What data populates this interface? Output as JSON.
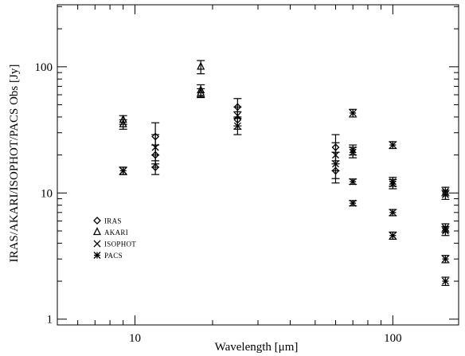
{
  "chart_data": {
    "type": "scatter",
    "title": "",
    "xlabel": "Wavelength [μm]",
    "ylabel": "IRAS/AKARI/ISOPHOT/PACS Obs [Jy]",
    "xscale": "log",
    "yscale": "log",
    "xlim": [
      5,
      180
    ],
    "ylim": [
      0.9,
      310
    ],
    "x_ticklabels": [
      "10",
      "100"
    ],
    "y_ticklabels": [
      "1",
      "10",
      "100"
    ],
    "grid": false,
    "legend_position": "lower-left",
    "series": [
      {
        "name": "IRAS",
        "marker": "diamond",
        "points": [
          {
            "x": 12,
            "y": 28,
            "err": 8
          },
          {
            "x": 12,
            "y": 20,
            "err": 4
          },
          {
            "x": 12,
            "y": 16,
            "err": 2
          },
          {
            "x": 25,
            "y": 48,
            "err": 8
          },
          {
            "x": 25,
            "y": 38,
            "err": 6
          },
          {
            "x": 60,
            "y": 23,
            "err": 6
          },
          {
            "x": 60,
            "y": 15,
            "err": 3
          }
        ]
      },
      {
        "name": "AKARI",
        "marker": "triangle",
        "points": [
          {
            "x": 9,
            "y": 38,
            "err": 3
          },
          {
            "x": 9,
            "y": 35,
            "err": 3
          },
          {
            "x": 18,
            "y": 100,
            "err": 12
          },
          {
            "x": 18,
            "y": 65,
            "err": 7
          },
          {
            "x": 18,
            "y": 62,
            "err": 5
          }
        ]
      },
      {
        "name": "ISOPHOT",
        "marker": "x",
        "points": [
          {
            "x": 9,
            "y": 15,
            "err": 1
          },
          {
            "x": 12,
            "y": 23,
            "err": 6
          },
          {
            "x": 25,
            "y": 41,
            "err": 7
          },
          {
            "x": 25,
            "y": 34,
            "err": 5
          },
          {
            "x": 60,
            "y": 20,
            "err": 5
          },
          {
            "x": 60,
            "y": 17,
            "err": 4
          }
        ]
      },
      {
        "name": "PACS",
        "marker": "asterisk",
        "points": [
          {
            "x": 9,
            "y": 15,
            "err": 1
          },
          {
            "x": 70,
            "y": 43,
            "err": 3
          },
          {
            "x": 70,
            "y": 22,
            "err": 2
          },
          {
            "x": 70,
            "y": 21,
            "err": 2
          },
          {
            "x": 70,
            "y": 12.3,
            "err": 0.6
          },
          {
            "x": 70,
            "y": 8.3,
            "err": 0.4
          },
          {
            "x": 100,
            "y": 24,
            "err": 1.5
          },
          {
            "x": 100,
            "y": 12.3,
            "err": 1
          },
          {
            "x": 100,
            "y": 11.8,
            "err": 1
          },
          {
            "x": 100,
            "y": 7,
            "err": 0.4
          },
          {
            "x": 100,
            "y": 4.6,
            "err": 0.3
          },
          {
            "x": 160,
            "y": 10.3,
            "err": 0.8
          },
          {
            "x": 160,
            "y": 9.7,
            "err": 0.8
          },
          {
            "x": 160,
            "y": 5.3,
            "err": 0.4
          },
          {
            "x": 160,
            "y": 5,
            "err": 0.4
          },
          {
            "x": 160,
            "y": 3,
            "err": 0.2
          },
          {
            "x": 160,
            "y": 2,
            "err": 0.15
          }
        ]
      }
    ]
  }
}
